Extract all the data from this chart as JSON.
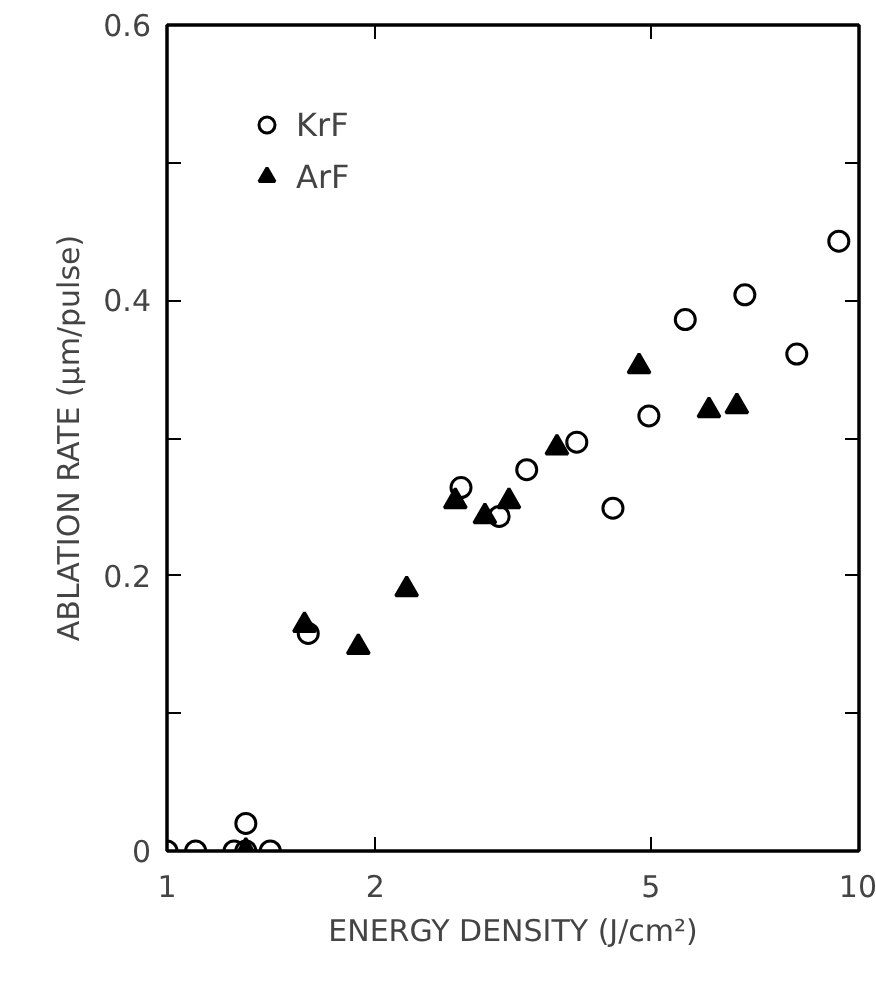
{
  "chart_data": {
    "type": "scatter",
    "xlabel": "ENERGY DENSITY (J/cm²)",
    "ylabel": "ABLATION RATE (μm/pulse)",
    "log": "x",
    "grid": false,
    "legend": "top left",
    "xlim": [
      1,
      10
    ],
    "ylim": [
      0,
      0.6
    ],
    "xticks": [
      1,
      2,
      5,
      10
    ],
    "yticks": [
      0,
      {
        "value": 0.1,
        "label": null
      },
      0.2,
      {
        "value": 0.3,
        "label": null
      },
      0.4,
      {
        "value": 0.5,
        "label": null
      },
      0.6
    ],
    "series": [
      {
        "name": "KrF",
        "color": "#000000",
        "marker": "circle",
        "x": [
          1.0,
          1.1,
          1.25,
          1.3,
          1.3,
          1.41,
          1.6,
          2.66,
          3.02,
          3.31,
          3.91,
          4.41,
          4.97,
          5.61,
          6.84,
          8.13,
          9.35
        ],
        "values": [
          0,
          0,
          0,
          0,
          0.02,
          0,
          0.158,
          0.264,
          0.243,
          0.277,
          0.297,
          0.249,
          0.316,
          0.386,
          0.404,
          0.361,
          0.443
        ]
      },
      {
        "name": "ArF",
        "color": "#000000",
        "marker": "triangle",
        "x": [
          1.3,
          1.58,
          1.89,
          2.22,
          2.61,
          2.88,
          3.12,
          3.66,
          4.81,
          6.07,
          6.66
        ],
        "values": [
          0,
          0.164,
          0.148,
          0.19,
          0.254,
          0.243,
          0.254,
          0.293,
          0.352,
          0.32,
          0.323
        ]
      }
    ]
  }
}
